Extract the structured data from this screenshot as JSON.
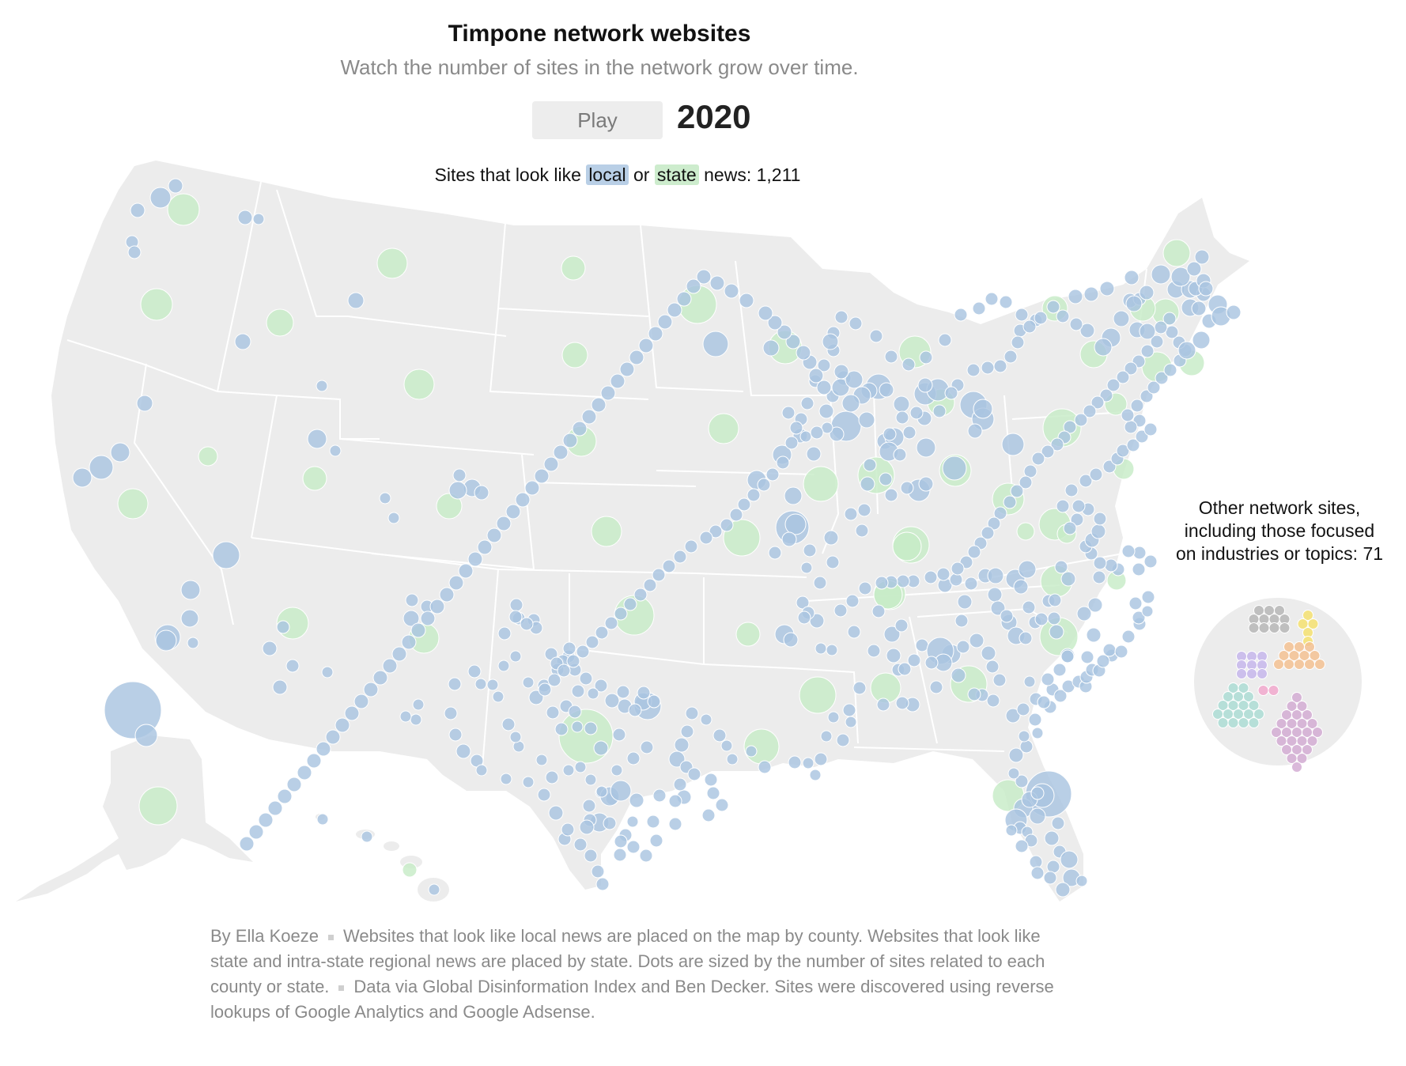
{
  "header": {
    "title": "Timpone network websites",
    "subtitle": "Watch the number of sites in the network grow over time."
  },
  "controls": {
    "play_label": "Play",
    "year": "2020"
  },
  "legend": {
    "prefix": "Sites that look like",
    "local_label": "local",
    "connector": "or",
    "state_label": "state",
    "suffix": "news: 1,211"
  },
  "other_sites": {
    "label_line1": "Other network sites,",
    "label_line2": "including those focused",
    "label_line3": "on industries or topics: 71"
  },
  "colors": {
    "local": "#a9c4e0",
    "state": "#c7ebc7",
    "land": "#ececec",
    "border": "#ffffff",
    "cluster_gray": "#b5b5b5",
    "cluster_yellow": "#f5e06b",
    "cluster_orange": "#f4c08f",
    "cluster_purple": "#c4b5ec",
    "cluster_pink": "#f2a6cc",
    "cluster_teal": "#a9dcd3",
    "cluster_mauve": "#d2a9d2"
  },
  "footer": {
    "byline": "By Ella Koeze",
    "note": "Websites that look like local news are placed on the map by county. Websites that look like state and intra-state regional news are placed by state. Dots are sized by the number of sites related to each county or state.",
    "source": "Data via Global Disinformation Index and Ben Decker. Sites were discovered using reverse lookups of Google Analytics and Google Adsense."
  }
}
